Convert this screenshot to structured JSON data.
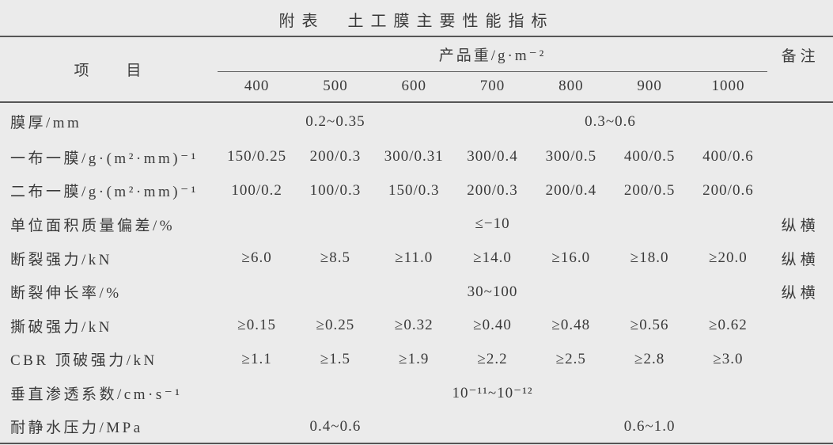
{
  "colors": {
    "background": "#ebebeb",
    "text": "#3a3a3a",
    "rule": "#565656"
  },
  "title": "附表　土工膜主要性能指标",
  "table": {
    "item_header": "项　　目",
    "group_header": "产品重/g·m⁻²",
    "remark_header": "备注",
    "weight_columns": [
      "400",
      "500",
      "600",
      "700",
      "800",
      "900",
      "1000"
    ],
    "rows": [
      {
        "label": "膜厚/mm",
        "cells": [
          {
            "text": "0.2~0.35",
            "span": 3
          },
          {
            "text": "0.3~0.6",
            "span": 4
          }
        ],
        "remark": ""
      },
      {
        "label": "一布一膜/g·(m²·mm)⁻¹",
        "cells": [
          {
            "text": "150/0.25",
            "span": 1
          },
          {
            "text": "200/0.3",
            "span": 1
          },
          {
            "text": "300/0.31",
            "span": 1
          },
          {
            "text": "300/0.4",
            "span": 1
          },
          {
            "text": "300/0.5",
            "span": 1
          },
          {
            "text": "400/0.5",
            "span": 1
          },
          {
            "text": "400/0.6",
            "span": 1
          }
        ],
        "remark": ""
      },
      {
        "label": "二布一膜/g·(m²·mm)⁻¹",
        "cells": [
          {
            "text": "100/0.2",
            "span": 1
          },
          {
            "text": "100/0.3",
            "span": 1
          },
          {
            "text": "150/0.3",
            "span": 1
          },
          {
            "text": "200/0.3",
            "span": 1
          },
          {
            "text": "200/0.4",
            "span": 1
          },
          {
            "text": "200/0.5",
            "span": 1
          },
          {
            "text": "200/0.6",
            "span": 1
          }
        ],
        "remark": ""
      },
      {
        "label": "单位面积质量偏差/%",
        "cells": [
          {
            "text": "≤−10",
            "span": 7
          }
        ],
        "remark": "纵横"
      },
      {
        "label": "断裂强力/kN",
        "cells": [
          {
            "text": "≥6.0",
            "span": 1
          },
          {
            "text": "≥8.5",
            "span": 1
          },
          {
            "text": "≥11.0",
            "span": 1
          },
          {
            "text": "≥14.0",
            "span": 1
          },
          {
            "text": "≥16.0",
            "span": 1
          },
          {
            "text": "≥18.0",
            "span": 1
          },
          {
            "text": "≥20.0",
            "span": 1
          }
        ],
        "remark": "纵横"
      },
      {
        "label": "断裂伸长率/%",
        "cells": [
          {
            "text": "30~100",
            "span": 7
          }
        ],
        "remark": "纵横"
      },
      {
        "label": "撕破强力/kN",
        "cells": [
          {
            "text": "≥0.15",
            "span": 1
          },
          {
            "text": "≥0.25",
            "span": 1
          },
          {
            "text": "≥0.32",
            "span": 1
          },
          {
            "text": "≥0.40",
            "span": 1
          },
          {
            "text": "≥0.48",
            "span": 1
          },
          {
            "text": "≥0.56",
            "span": 1
          },
          {
            "text": "≥0.62",
            "span": 1
          }
        ],
        "remark": ""
      },
      {
        "label": "CBR 顶破强力/kN",
        "cells": [
          {
            "text": "≥1.1",
            "span": 1
          },
          {
            "text": "≥1.5",
            "span": 1
          },
          {
            "text": "≥1.9",
            "span": 1
          },
          {
            "text": "≥2.2",
            "span": 1
          },
          {
            "text": "≥2.5",
            "span": 1
          },
          {
            "text": "≥2.8",
            "span": 1
          },
          {
            "text": "≥3.0",
            "span": 1
          }
        ],
        "remark": ""
      },
      {
        "label": "垂直渗透系数/cm·s⁻¹",
        "cells": [
          {
            "text": "10⁻¹¹~10⁻¹²",
            "span": 7
          }
        ],
        "remark": ""
      },
      {
        "label": "耐静水压力/MPa",
        "cells": [
          {
            "text": "0.4~0.6",
            "span": 3
          },
          {
            "text": "",
            "span": 1
          },
          {
            "text": "0.6~1.0",
            "span": 3
          }
        ],
        "remark": ""
      }
    ]
  }
}
